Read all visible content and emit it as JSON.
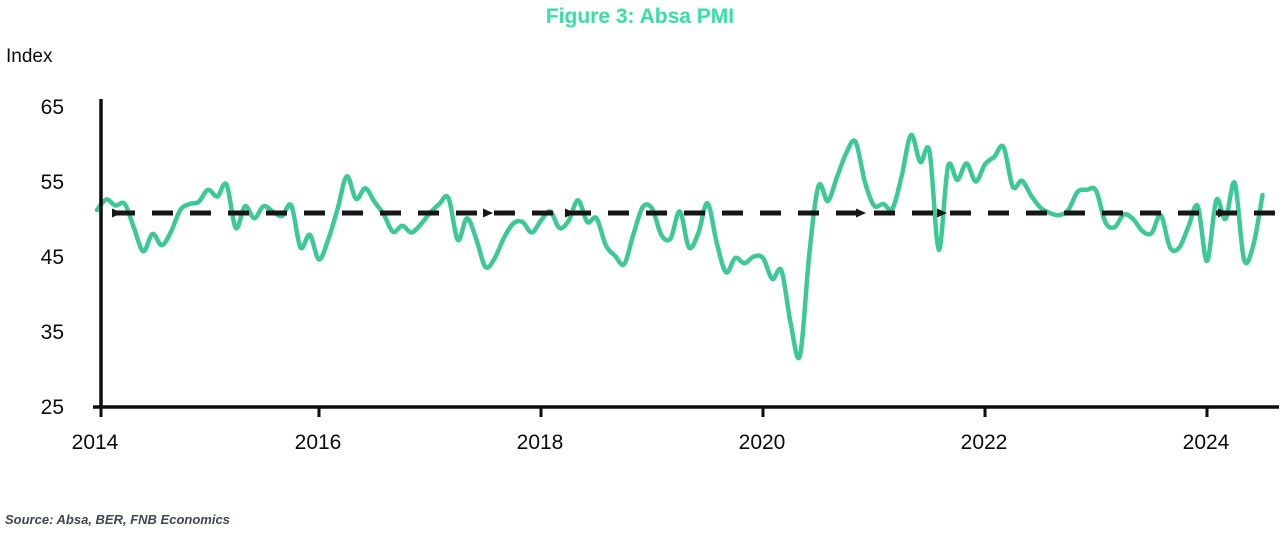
{
  "title": "Figure 3: Absa PMI",
  "y_axis": {
    "label": "Index",
    "ticks": [
      "65",
      "55",
      "45",
      "35",
      "25"
    ]
  },
  "x_axis": {
    "ticks": [
      "2014",
      "2016",
      "2018",
      "2020",
      "2022",
      "2024"
    ]
  },
  "source": "Source: Absa, BER, FNB Economics",
  "colors": {
    "title": "#35e0a1",
    "series": "#3dc996",
    "axis": "#0d0d0d",
    "dashed_reference": "#161616",
    "source_text": "#3c4850"
  },
  "chart_data": {
    "type": "line",
    "title": "Figure 3: Absa PMI",
    "xlabel": "",
    "ylabel": "Index",
    "ylim": [
      25,
      65
    ],
    "y_ticks": [
      65,
      55,
      45,
      35,
      25
    ],
    "x_tick_labels": [
      "2014",
      "2016",
      "2018",
      "2020",
      "2022",
      "2024"
    ],
    "frequency": "monthly",
    "x_start": "2014-01",
    "x_end": "2024-07",
    "grid": false,
    "legend": "none",
    "reference_line": {
      "value": 50,
      "style": "dashed",
      "color": "#161616"
    },
    "series": [
      {
        "name": "Absa PMI",
        "color": "#3dc996",
        "values": [
          50.4,
          51.8,
          51.0,
          51.2,
          48.0,
          44.9,
          47.2,
          45.7,
          47.5,
          50.4,
          51.2,
          51.5,
          53.1,
          52.2,
          53.8,
          48.0,
          50.9,
          49.3,
          50.9,
          50.2,
          49.6,
          51.0,
          45.4,
          47.1,
          43.8,
          46.5,
          50.5,
          54.9,
          51.9,
          53.3,
          51.5,
          49.8,
          47.5,
          48.3,
          47.4,
          48.5,
          50.0,
          51.2,
          52.0,
          46.4,
          49.3,
          46.5,
          42.8,
          44.0,
          46.7,
          48.6,
          48.8,
          47.4,
          49.0,
          50.2,
          48.0,
          49.0,
          51.7,
          48.8,
          49.3,
          45.7,
          44.3,
          43.2,
          47.2,
          50.8,
          50.6,
          47.1,
          46.6,
          50.2,
          45.4,
          47.3,
          51.3,
          46.0,
          42.1,
          44.0,
          43.3,
          44.2,
          44.0,
          41.2,
          42.3,
          35.2,
          31.0,
          44.5,
          53.6,
          51.6,
          54.8,
          58.0,
          59.5,
          54.2,
          51.0,
          51.2,
          50.6,
          55.0,
          60.4,
          56.8,
          58.2,
          45.1,
          56.2,
          54.4,
          56.6,
          54.2,
          56.5,
          57.5,
          58.8,
          53.5,
          54.3,
          52.3,
          50.7,
          50.0,
          49.7,
          50.4,
          52.8,
          53.1,
          53.0,
          48.8,
          48.1,
          49.8,
          49.2,
          47.6,
          47.3,
          49.7,
          45.4,
          45.4,
          48.2,
          50.9,
          43.6,
          51.7,
          49.2,
          54.0,
          43.8,
          45.7,
          52.4
        ]
      }
    ]
  }
}
